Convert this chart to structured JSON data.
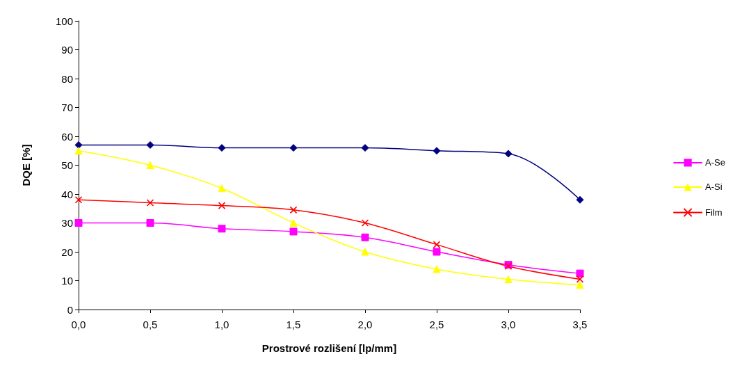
{
  "chart_data": {
    "type": "line",
    "xlabel": "Prostrové rozlišení [lp/mm]",
    "ylabel": "DQE [%]",
    "x": [
      0,
      0.5,
      1,
      1.5,
      2,
      2.5,
      3,
      3.5
    ],
    "xlim": [
      0,
      3.5
    ],
    "xticks": [
      {
        "value": 0,
        "label": "0,0"
      },
      {
        "value": 0.5,
        "label": "0,5"
      },
      {
        "value": 1,
        "label": "1,0"
      },
      {
        "value": 1.5,
        "label": "1,5"
      },
      {
        "value": 2,
        "label": "2,0"
      },
      {
        "value": 2.5,
        "label": "2,5"
      },
      {
        "value": 3,
        "label": "3,0"
      },
      {
        "value": 3.5,
        "label": "3,5"
      }
    ],
    "ylim": [
      0,
      100
    ],
    "yticks": [
      0,
      10,
      20,
      30,
      40,
      50,
      60,
      70,
      80,
      90,
      100
    ],
    "grid": false,
    "legend": "right",
    "line_style": "solid",
    "series": [
      {
        "color": "#000080",
        "marker": "diamond",
        "values": [
          57,
          57,
          56,
          56,
          56,
          55,
          54,
          38
        ]
      },
      {
        "name": "A-Se",
        "color": "#ff00ff",
        "marker": "square",
        "values": [
          30,
          30,
          28,
          27,
          25,
          20,
          15.5,
          12.5
        ]
      },
      {
        "name": "A-Si",
        "color": "#ffff00",
        "marker": "triangle",
        "values": [
          55,
          50,
          42,
          30,
          20,
          14,
          10.5,
          8.5
        ]
      },
      {
        "name": "Film",
        "color": "#ff0000",
        "marker": "cross",
        "values": [
          38,
          37,
          36,
          34.5,
          30,
          22.5,
          15,
          10.5
        ]
      }
    ]
  }
}
